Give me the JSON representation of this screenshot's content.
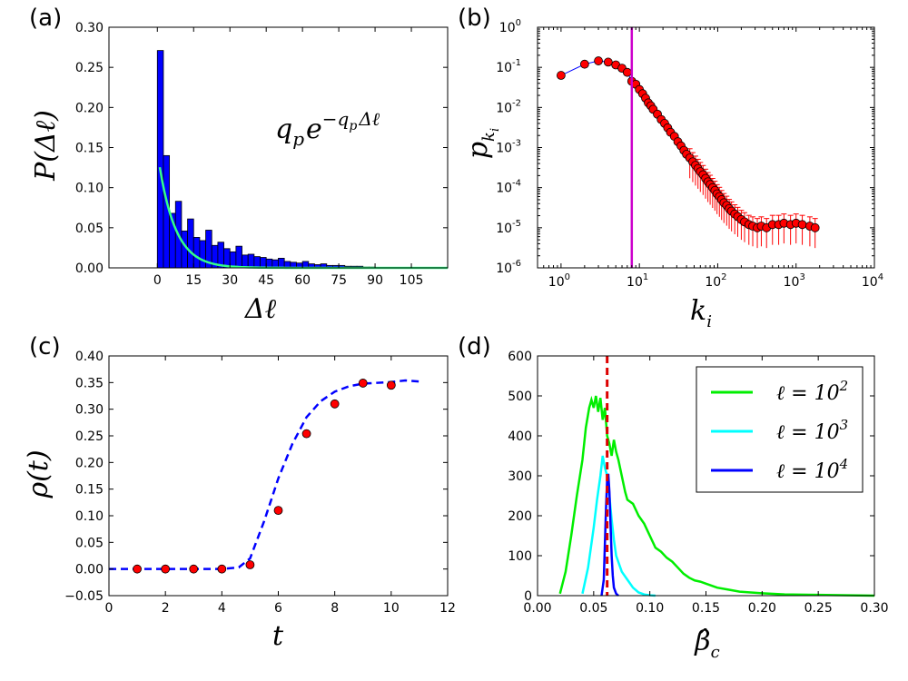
{
  "chart_data": [
    {
      "id": "a",
      "type": "bar",
      "panel_label": "(a)",
      "xlabel": "Δℓ",
      "ylabel": "P(Δℓ)",
      "formula": "q_p e^{-q_p Δℓ}",
      "formula_text": {
        "base": "q",
        "sub": "p",
        "e": "e",
        "sup": "−q",
        "supsub": "p",
        "suptail": "Δℓ"
      },
      "ylim": [
        0,
        0.3
      ],
      "xlim": [
        -20,
        120
      ],
      "xticks": [
        "0",
        "15",
        "30",
        "45",
        "60",
        "75",
        "90",
        "105"
      ],
      "yticks": [
        "0.00",
        "0.05",
        "0.10",
        "0.15",
        "0.20",
        "0.25",
        "0.30"
      ],
      "bin_width": 2.5,
      "bin_start": 0,
      "values": [
        0.271,
        0.14,
        0.068,
        0.083,
        0.046,
        0.061,
        0.038,
        0.034,
        0.047,
        0.028,
        0.032,
        0.024,
        0.02,
        0.027,
        0.016,
        0.017,
        0.014,
        0.013,
        0.011,
        0.01,
        0.012,
        0.008,
        0.007,
        0.006,
        0.008,
        0.005,
        0.004,
        0.005,
        0.003,
        0.003,
        0.003,
        0.002,
        0.002,
        0.002,
        0.001,
        0.001
      ],
      "fit": {
        "qp": 0.145,
        "x_start": 1.0,
        "x_end": 120
      },
      "colors": {
        "bars": "#0000ff",
        "fit": "#33ff88"
      }
    },
    {
      "id": "b",
      "type": "scatter",
      "panel_label": "(b)",
      "xlabel": "k_i",
      "ylabel": "p_{k_i}",
      "xlabel_text": {
        "base": "k",
        "sub": "i"
      },
      "ylabel_text": {
        "base": "p",
        "sub": "k",
        "subsub": "i"
      },
      "xscale": "log",
      "yscale": "log",
      "xlim_exp": [
        -0.3,
        4
      ],
      "ylim_exp": [
        -6,
        0
      ],
      "xticks": [
        {
          "base": "10",
          "exp": "0"
        },
        {
          "base": "10",
          "exp": "1"
        },
        {
          "base": "10",
          "exp": "2"
        },
        {
          "base": "10",
          "exp": "3"
        },
        {
          "base": "10",
          "exp": "4"
        }
      ],
      "yticks": [
        {
          "base": "10",
          "exp": "-6"
        },
        {
          "base": "10",
          "exp": "-5"
        },
        {
          "base": "10",
          "exp": "-4"
        },
        {
          "base": "10",
          "exp": "-3"
        },
        {
          "base": "10",
          "exp": "-2"
        },
        {
          "base": "10",
          "exp": "-1"
        },
        {
          "base": "10",
          "exp": "0"
        }
      ],
      "vline_x": 8,
      "points": [
        [
          1,
          0.063
        ],
        [
          2,
          0.12
        ],
        [
          3,
          0.145
        ],
        [
          4,
          0.135
        ],
        [
          5,
          0.115
        ],
        [
          6,
          0.095
        ],
        [
          7,
          0.075
        ],
        [
          8,
          0.045
        ],
        [
          9,
          0.038
        ],
        [
          10,
          0.028
        ],
        [
          11,
          0.022
        ],
        [
          12,
          0.017
        ],
        [
          13,
          0.013
        ],
        [
          14,
          0.011
        ],
        [
          15,
          0.009
        ],
        [
          17,
          0.0068
        ],
        [
          19,
          0.005
        ],
        [
          21,
          0.004
        ],
        [
          23,
          0.0031
        ],
        [
          25,
          0.0024
        ],
        [
          28,
          0.0019
        ],
        [
          31,
          0.0014
        ],
        [
          34,
          0.0011
        ],
        [
          37,
          0.00085
        ],
        [
          40,
          0.00068
        ],
        [
          44,
          0.00055
        ],
        [
          48,
          0.00044
        ],
        [
          52,
          0.00036
        ],
        [
          56,
          0.0003
        ],
        [
          60,
          0.00025
        ],
        [
          65,
          0.00021
        ],
        [
          70,
          0.00017
        ],
        [
          75,
          0.00014
        ],
        [
          80,
          0.00012
        ],
        [
          86,
          0.0001
        ],
        [
          92,
          8.5e-05
        ],
        [
          98,
          7e-05
        ],
        [
          105,
          6e-05
        ],
        [
          112,
          5e-05
        ],
        [
          120,
          4.2e-05
        ],
        [
          130,
          3.6e-05
        ],
        [
          140,
          3e-05
        ],
        [
          150,
          2.6e-05
        ],
        [
          165,
          2.2e-05
        ],
        [
          180,
          1.9e-05
        ],
        [
          200,
          1.6e-05
        ],
        [
          220,
          1.4e-05
        ],
        [
          250,
          1.2e-05
        ],
        [
          280,
          1.1e-05
        ],
        [
          320,
          1e-05
        ],
        [
          360,
          1.1e-05
        ],
        [
          420,
          1e-05
        ],
        [
          500,
          1.2e-05
        ],
        [
          600,
          1.2e-05
        ],
        [
          700,
          1.3e-05
        ],
        [
          850,
          1.2e-05
        ],
        [
          1000,
          1.3e-05
        ],
        [
          1200,
          1.2e-05
        ],
        [
          1500,
          1.1e-05
        ],
        [
          1750,
          1e-05
        ]
      ],
      "colors": {
        "line": "#0000ff",
        "marker": "#ff0000",
        "vline": "#cc00cc",
        "err": "#ff0000"
      }
    },
    {
      "id": "c",
      "type": "scatter",
      "panel_label": "(c)",
      "xlabel": "t",
      "ylabel": "ρ(t)",
      "xlim": [
        0,
        12
      ],
      "ylim": [
        -0.05,
        0.4
      ],
      "xticks": [
        "0",
        "2",
        "4",
        "6",
        "8",
        "10",
        "12"
      ],
      "yticks": [
        "−0.05",
        "0.00",
        "0.05",
        "0.10",
        "0.15",
        "0.20",
        "0.25",
        "0.30",
        "0.35",
        "0.40"
      ],
      "points": [
        [
          1,
          0.0
        ],
        [
          2,
          0.0
        ],
        [
          3,
          0.0
        ],
        [
          4,
          0.0
        ],
        [
          5,
          0.008
        ],
        [
          6,
          0.11
        ],
        [
          7,
          0.254
        ],
        [
          8,
          0.31
        ],
        [
          9,
          0.349
        ],
        [
          10,
          0.345
        ]
      ],
      "errors": [
        0.003,
        0.003,
        0.003,
        0.003,
        0.004,
        0.004,
        0.007,
        0.007,
        0.007,
        0.008
      ],
      "model_curve": [
        [
          0,
          0.0
        ],
        [
          4,
          0.0
        ],
        [
          4.6,
          0.003
        ],
        [
          5.0,
          0.02
        ],
        [
          5.5,
          0.09
        ],
        [
          6.0,
          0.17
        ],
        [
          6.5,
          0.235
        ],
        [
          7.0,
          0.285
        ],
        [
          7.5,
          0.315
        ],
        [
          8.0,
          0.333
        ],
        [
          8.5,
          0.343
        ],
        [
          9.0,
          0.348
        ],
        [
          10.0,
          0.351
        ],
        [
          10.5,
          0.354
        ],
        [
          11.0,
          0.352
        ]
      ],
      "colors": {
        "curve": "#0000ff",
        "marker": "#ff0000"
      }
    },
    {
      "id": "d",
      "type": "line",
      "panel_label": "(d)",
      "xlabel": "β̂_c",
      "xlabel_text": {
        "base": "β̂",
        "sub": "c"
      },
      "xlim": [
        0,
        0.3
      ],
      "ylim": [
        0,
        600
      ],
      "xticks": [
        "0.00",
        "0.05",
        "0.10",
        "0.15",
        "0.20",
        "0.25",
        "0.30"
      ],
      "yticks": [
        "0",
        "100",
        "200",
        "300",
        "400",
        "500",
        "600"
      ],
      "vline_x": 0.062,
      "legend_position": "top-right",
      "series": [
        {
          "name": "ℓ = 10^2",
          "label": {
            "pre": "ℓ = 10",
            "exp": "2"
          },
          "color": "#00ee00",
          "points": [
            [
              0.02,
              5
            ],
            [
              0.025,
              60
            ],
            [
              0.03,
              150
            ],
            [
              0.035,
              250
            ],
            [
              0.04,
              340
            ],
            [
              0.043,
              420
            ],
            [
              0.046,
              470
            ],
            [
              0.048,
              490
            ],
            [
              0.05,
              470
            ],
            [
              0.052,
              500
            ],
            [
              0.054,
              460
            ],
            [
              0.056,
              495
            ],
            [
              0.058,
              440
            ],
            [
              0.06,
              470
            ],
            [
              0.062,
              400
            ],
            [
              0.064,
              380
            ],
            [
              0.066,
              350
            ],
            [
              0.068,
              390
            ],
            [
              0.07,
              360
            ],
            [
              0.072,
              340
            ],
            [
              0.075,
              300
            ],
            [
              0.078,
              260
            ],
            [
              0.08,
              240
            ],
            [
              0.085,
              230
            ],
            [
              0.09,
              200
            ],
            [
              0.095,
              180
            ],
            [
              0.1,
              150
            ],
            [
              0.105,
              120
            ],
            [
              0.11,
              110
            ],
            [
              0.115,
              95
            ],
            [
              0.12,
              85
            ],
            [
              0.125,
              70
            ],
            [
              0.13,
              55
            ],
            [
              0.135,
              45
            ],
            [
              0.14,
              38
            ],
            [
              0.145,
              35
            ],
            [
              0.15,
              30
            ],
            [
              0.16,
              20
            ],
            [
              0.17,
              15
            ],
            [
              0.18,
              10
            ],
            [
              0.2,
              6
            ],
            [
              0.22,
              3
            ],
            [
              0.25,
              2
            ],
            [
              0.3,
              0
            ]
          ]
        },
        {
          "name": "ℓ = 10^3",
          "label": {
            "pre": "ℓ = 10",
            "exp": "3"
          },
          "color": "#00ffff",
          "points": [
            [
              0.04,
              5
            ],
            [
              0.045,
              70
            ],
            [
              0.05,
              170
            ],
            [
              0.053,
              240
            ],
            [
              0.056,
              300
            ],
            [
              0.058,
              350
            ],
            [
              0.06,
              320
            ],
            [
              0.062,
              300
            ],
            [
              0.064,
              250
            ],
            [
              0.066,
              190
            ],
            [
              0.068,
              140
            ],
            [
              0.07,
              100
            ],
            [
              0.075,
              60
            ],
            [
              0.08,
              40
            ],
            [
              0.085,
              20
            ],
            [
              0.09,
              8
            ],
            [
              0.095,
              3
            ],
            [
              0.1,
              1
            ],
            [
              0.105,
              0
            ]
          ]
        },
        {
          "name": "ℓ = 10^4",
          "label": {
            "pre": "ℓ = 10",
            "exp": "4"
          },
          "color": "#0000ff",
          "points": [
            [
              0.057,
              0
            ],
            [
              0.059,
              40
            ],
            [
              0.06,
              130
            ],
            [
              0.061,
              220
            ],
            [
              0.062,
              290
            ],
            [
              0.063,
              305
            ],
            [
              0.064,
              260
            ],
            [
              0.065,
              180
            ],
            [
              0.066,
              100
            ],
            [
              0.067,
              50
            ],
            [
              0.068,
              20
            ],
            [
              0.07,
              5
            ],
            [
              0.072,
              0
            ]
          ]
        }
      ],
      "colors": {
        "vline": "#dd0000"
      }
    }
  ]
}
